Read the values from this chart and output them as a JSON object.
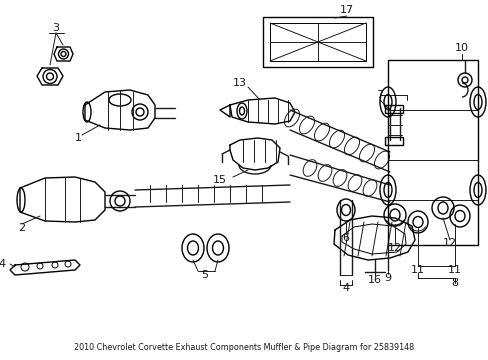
{
  "title": "2010 Chevrolet Corvette Exhaust Components Muffler & Pipe Diagram for 25839148",
  "bg": "#ffffff",
  "lc": "#1a1a1a",
  "figsize": [
    4.89,
    3.6
  ],
  "dpi": 100
}
